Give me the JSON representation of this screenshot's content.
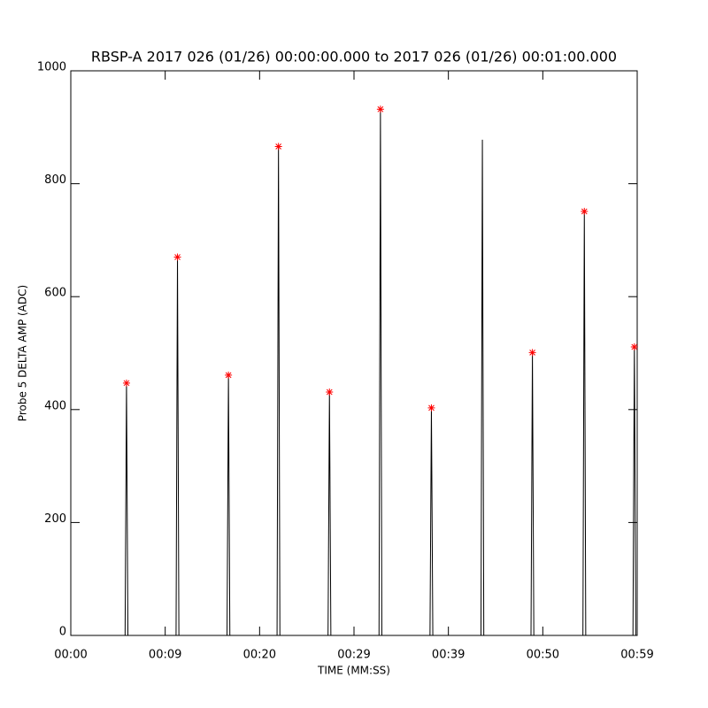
{
  "chart_data": {
    "type": "line",
    "title": "RBSP-A 2017 026 (01/26) 00:00:00.000 to 2017 026 (01/26) 00:01:00.000",
    "xlabel": "TIME (MM:SS)",
    "ylabel": "Probe 5 DELTA AMP (ADC)",
    "xlim": [
      0,
      60
    ],
    "ylim": [
      0,
      1000
    ],
    "xticks": [
      {
        "value": 0,
        "label": "00:00"
      },
      {
        "value": 10,
        "label": "00:09"
      },
      {
        "value": 20,
        "label": "00:20"
      },
      {
        "value": 30,
        "label": "00:29"
      },
      {
        "value": 40,
        "label": "00:39"
      },
      {
        "value": 50,
        "label": "00:50"
      },
      {
        "value": 60,
        "label": "00:59"
      }
    ],
    "yticks": [
      0,
      200,
      400,
      600,
      800,
      1000
    ],
    "series": [
      {
        "color": "#000000",
        "marker": "line",
        "x": [
          5.75,
          5.9,
          6.05,
          11.15,
          11.3,
          11.45,
          16.55,
          16.7,
          16.85,
          21.85,
          22.0,
          22.15,
          27.25,
          27.4,
          27.55,
          32.65,
          32.8,
          32.95,
          38.05,
          38.2,
          38.35,
          43.45,
          43.6,
          43.75,
          48.75,
          48.9,
          49.05,
          54.25,
          54.4,
          54.55,
          59.55,
          59.7,
          59.85
        ],
        "values": [
          0,
          447,
          0,
          0,
          670,
          0,
          0,
          461,
          0,
          0,
          866,
          0,
          0,
          431,
          0,
          0,
          932,
          0,
          0,
          403,
          0,
          0,
          878,
          0,
          0,
          501,
          0,
          0,
          751,
          0,
          0,
          511,
          0
        ]
      },
      {
        "color": "#ff0000",
        "marker": "star",
        "x": [
          5.9,
          11.3,
          16.7,
          22.0,
          27.4,
          32.8,
          38.2,
          48.9,
          54.4,
          59.7
        ],
        "values": [
          447,
          670,
          461,
          866,
          431,
          932,
          403,
          501,
          751,
          511
        ]
      }
    ]
  }
}
